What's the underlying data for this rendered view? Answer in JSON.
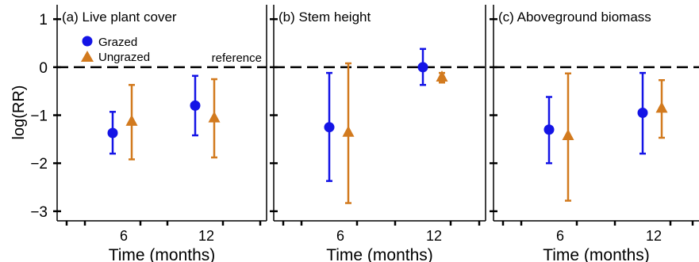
{
  "figure": {
    "ylabel": "log(RR)",
    "xlabel": "Time (months)",
    "legend": {
      "grazed": "Grazed",
      "ungrazed": "Ungrazed"
    },
    "reference_label": "reference",
    "y_ticks": [
      1,
      0,
      -1,
      -2,
      -3
    ],
    "y_tick_labels": [
      "1",
      "0",
      "−1",
      "−2",
      "−3"
    ],
    "x_tick_labels": [
      "6",
      "12"
    ]
  },
  "colors": {
    "grazed": "#1414e6",
    "ungrazed": "#d27a1e",
    "reference": "#000000"
  },
  "chart_data": [
    {
      "type": "scatter",
      "panel": "(a)",
      "title": "Live plant cover",
      "categories": [
        "6",
        "12"
      ],
      "ylim": [
        -3.2,
        1.3
      ],
      "reference_line": 0,
      "series": [
        {
          "name": "Grazed",
          "marker": "circle",
          "values": [
            -1.37,
            -0.8
          ],
          "lower": [
            -1.8,
            -1.42
          ],
          "upper": [
            -0.93,
            -0.18
          ]
        },
        {
          "name": "Ungrazed",
          "marker": "triangle",
          "values": [
            -1.12,
            -1.05
          ],
          "lower": [
            -1.92,
            -1.88
          ],
          "upper": [
            -0.37,
            -0.25
          ]
        }
      ]
    },
    {
      "type": "scatter",
      "panel": "(b)",
      "title": "Stem height",
      "categories": [
        "6",
        "12"
      ],
      "ylim": [
        -3.2,
        1.3
      ],
      "reference_line": 0,
      "series": [
        {
          "name": "Grazed",
          "marker": "circle",
          "values": [
            -1.25,
            0.0
          ],
          "lower": [
            -2.37,
            -0.37
          ],
          "upper": [
            -0.12,
            0.38
          ]
        },
        {
          "name": "Ungrazed",
          "marker": "triangle",
          "values": [
            -1.35,
            -0.2
          ],
          "lower": [
            -2.83,
            -0.32
          ],
          "upper": [
            0.08,
            -0.12
          ]
        }
      ]
    },
    {
      "type": "scatter",
      "panel": "(c)",
      "title": "Aboveground biomass",
      "categories": [
        "6",
        "12"
      ],
      "ylim": [
        -3.2,
        1.3
      ],
      "reference_line": 0,
      "series": [
        {
          "name": "Grazed",
          "marker": "circle",
          "values": [
            -1.3,
            -0.95
          ],
          "lower": [
            -2.0,
            -1.8
          ],
          "upper": [
            -0.62,
            -0.12
          ]
        },
        {
          "name": "Ungrazed",
          "marker": "triangle",
          "values": [
            -1.42,
            -0.85
          ],
          "lower": [
            -2.78,
            -1.47
          ],
          "upper": [
            -0.13,
            -0.27
          ]
        }
      ]
    }
  ]
}
